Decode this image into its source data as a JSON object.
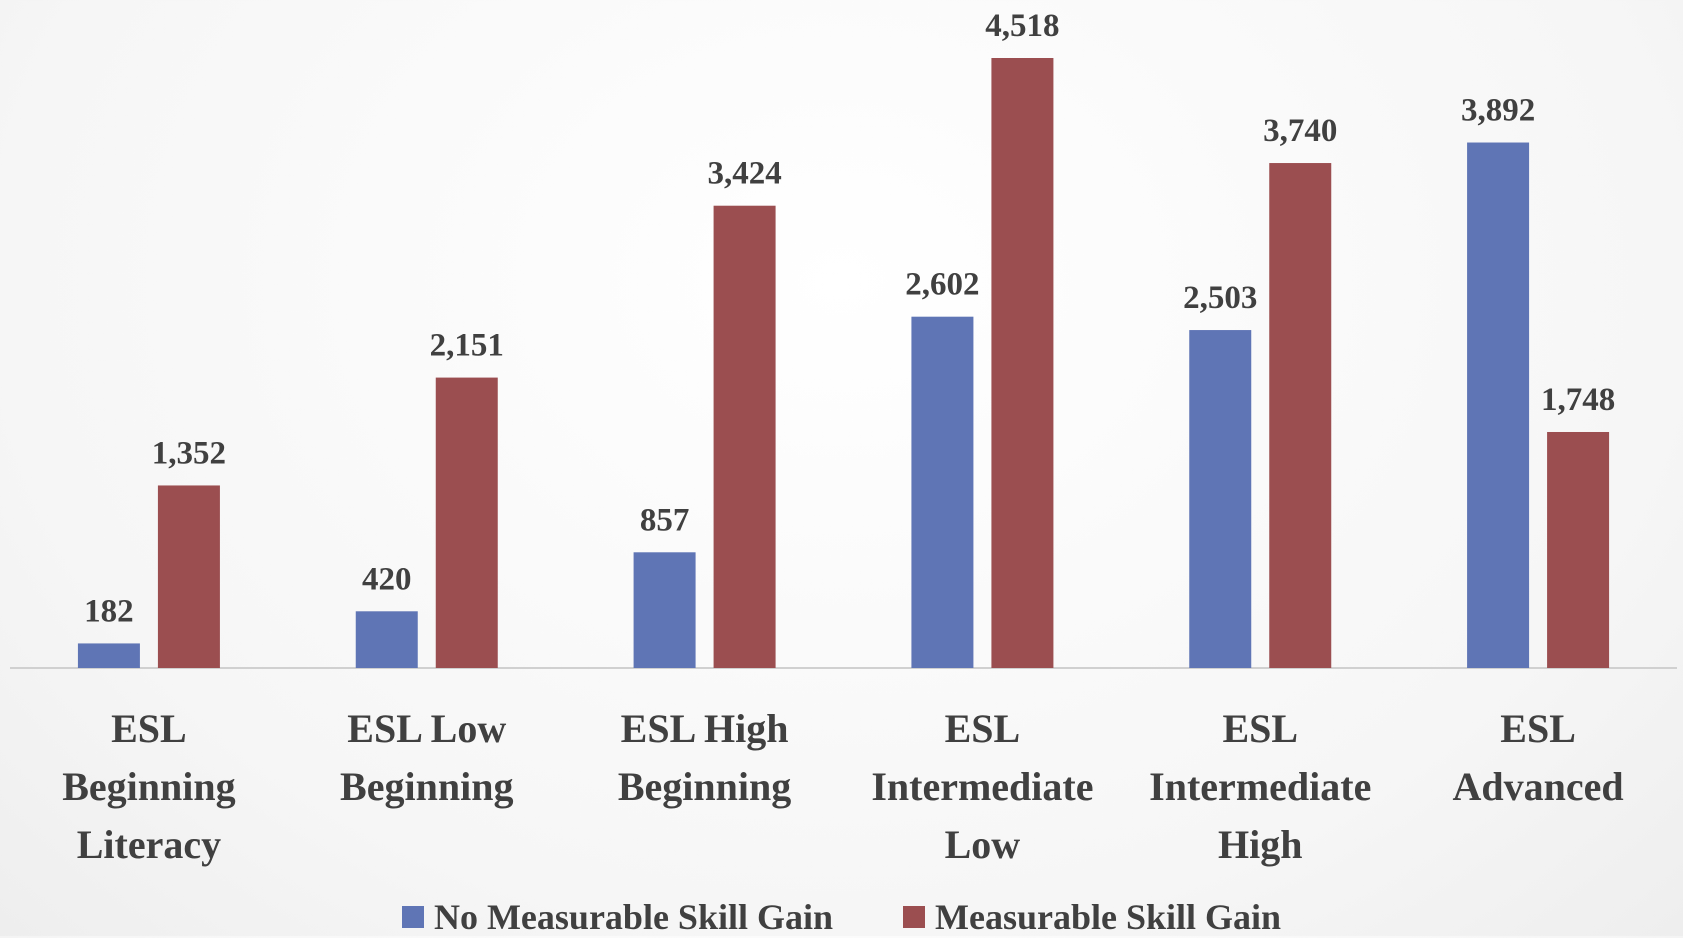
{
  "chart_data": {
    "type": "bar",
    "categories": [
      "ESL Beginning Literacy",
      "ESL Low Beginning",
      "ESL High Beginning",
      "ESL Intermediate Low",
      "ESL Intermediate High",
      "ESL Advanced"
    ],
    "series": [
      {
        "name": "No Measurable Skill Gain",
        "color": "#5f75b5",
        "values": [
          182,
          420,
          857,
          2602,
          2503,
          3892
        ],
        "value_labels": [
          "182",
          "420",
          "857",
          "2,602",
          "2,503",
          "3,892"
        ]
      },
      {
        "name": "Measurable Skill Gain",
        "color": "#9b4e50",
        "values": [
          1352,
          2151,
          3424,
          4518,
          3740,
          1748
        ],
        "value_labels": [
          "1,352",
          "2,151",
          "3,424",
          "4,518",
          "3,740",
          "1,748"
        ]
      }
    ],
    "legend": "bottom"
  }
}
